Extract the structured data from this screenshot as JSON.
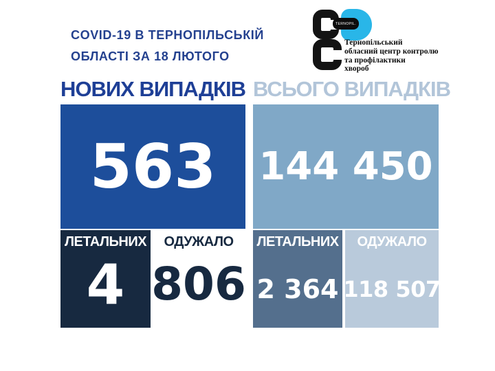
{
  "title": {
    "line1": "COVID-19 В ТЕРНОПІЛЬСЬКІЙ",
    "line2": "ОБЛАСТІ ЗА 18 ЛЮТОГО"
  },
  "logo": {
    "badge_text": "TERNOPIL.",
    "org_name_lines": [
      "Тернопільський",
      "обласний центр контролю",
      "та профілактики",
      "хвороб"
    ]
  },
  "stats": {
    "new_cases": {
      "header": "НОВИХ ВИПАДКІВ",
      "value": "563",
      "lethal_label": "ЛЕТАЛЬНИХ",
      "lethal_value": "4",
      "recovered_label": "ОДУЖАЛО",
      "recovered_value": "806"
    },
    "total_cases": {
      "header": "ВСЬОГО ВИПАДКІВ",
      "value": "144 450",
      "lethal_label": "ЛЕТАЛЬНИХ",
      "lethal_value": "2 364",
      "recovered_label": "ОДУЖАЛО",
      "recovered_value": "118 507"
    }
  },
  "colors": {
    "title_text": "#24418f",
    "header_new": "#1e3f96",
    "header_total": "#b2c5d9",
    "box_new": "#1d4e9b",
    "box_total": "#80a8c7",
    "box_lethal_new": "#172940",
    "box_recovered_new": "#ffffff",
    "box_lethal_total": "#546f8d",
    "box_recovered_total": "#b9cadb",
    "logo_accent": "#29b6e8",
    "logo_black": "#131313"
  },
  "chart_data": {
    "type": "table",
    "title": "COVID-19 в Тернопільській області за 18 лютого",
    "columns": [
      "Нових випадків",
      "Всього випадків"
    ],
    "rows": [
      {
        "metric": "Випадків",
        "new": 563,
        "total": 144450
      },
      {
        "metric": "Летальних",
        "new": 4,
        "total": 2364
      },
      {
        "metric": "Одужало",
        "new": 806,
        "total": 118507
      }
    ]
  }
}
